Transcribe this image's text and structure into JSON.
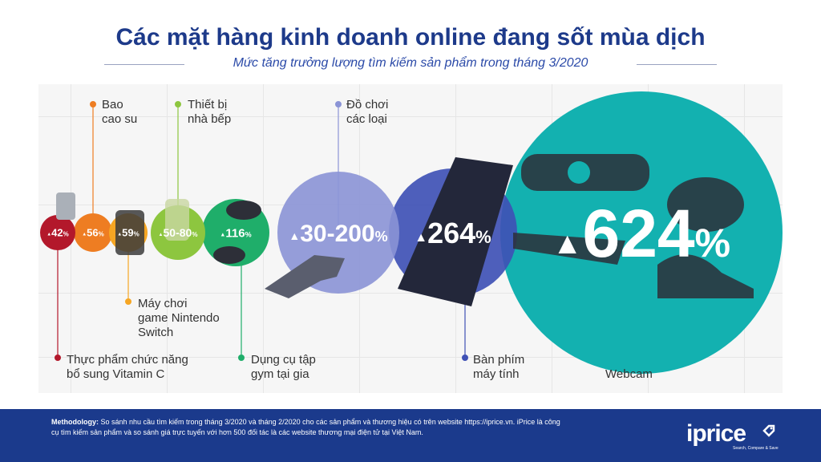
{
  "title": "Các mặt hàng kinh doanh online đang sốt mùa dịch",
  "subtitle": "Mức tăng trưởng lượng tìm kiếm sản phẩm trong tháng 3/2020",
  "colors": {
    "title": "#1d3a8a",
    "footer": "#1b3a8c",
    "vitamin": "#b3182b",
    "condom": "#ee7d22",
    "nintendo": "#f6a623",
    "kitchen": "#8dc63f",
    "gym": "#1fae6a",
    "toys": "#8b94d6",
    "keyboard": "#3f51b5",
    "webcam": "#13b1b0"
  },
  "chart_data": {
    "type": "bubble",
    "title": "Các mặt hàng kinh doanh online đang sốt mùa dịch",
    "subtitle": "Mức tăng trưởng lượng tìm kiếm sản phẩm trong tháng 3/2020",
    "unit": "%",
    "items": [
      {
        "category": "Thực phẩm chức năng bổ sung Vitamin C",
        "value": 42,
        "value_label": "42",
        "color": "#b3182b",
        "label_side": "bottom"
      },
      {
        "category": "Bao cao su",
        "value": 56,
        "value_label": "56",
        "color": "#ee7d22",
        "label_side": "top"
      },
      {
        "category": "Máy chơi game Nintendo Switch",
        "value": 59,
        "value_label": "59",
        "color": "#f6a623",
        "label_side": "bottom"
      },
      {
        "category": "Thiết bị nhà bếp",
        "value": 80,
        "value_range": [
          50,
          80
        ],
        "value_label": "50-80",
        "color": "#8dc63f",
        "label_side": "top"
      },
      {
        "category": "Dụng cụ tập gym tại gia",
        "value": 116,
        "value_label": "116",
        "color": "#1fae6a",
        "label_side": "bottom"
      },
      {
        "category": "Đồ chơi các loại",
        "value": 200,
        "value_range": [
          30,
          200
        ],
        "value_label": "30-200",
        "color": "#8b94d6",
        "label_side": "top"
      },
      {
        "category": "Bàn phím máy tính",
        "value": 264,
        "value_label": "264",
        "color": "#3f51b5",
        "label_side": "bottom"
      },
      {
        "category": "Webcam",
        "value": 624,
        "value_label": "624",
        "color": "#13b1b0",
        "label_side": "bottom"
      }
    ]
  },
  "labels": {
    "vitamin": [
      "Thực phẩm chức năng",
      "bổ sung Vitamin C"
    ],
    "condom": [
      "Bao",
      "cao su"
    ],
    "nintendo": [
      "Máy chơi",
      "game Nintendo",
      "Switch"
    ],
    "kitchen": [
      "Thiết bị",
      "nhà bếp"
    ],
    "gym": [
      "Dụng cụ tập",
      "gym tại gia"
    ],
    "toys": [
      "Đồ chơi",
      "các loại"
    ],
    "keyboard": [
      "Bàn phím",
      "máy tính"
    ],
    "webcam": [
      "Webcam"
    ]
  },
  "footer": {
    "methodology_label": "Methodology:",
    "methodology_text": " So sánh nhu cầu tìm kiếm trong tháng 3/2020 và tháng 2/2020 cho các sản phẩm và thương hiệu có trên website https://iprice.vn. iPrice là công cụ tìm kiếm sản phẩm và so sánh giá trực tuyến với hơn 500 đối tác là các website thương mại điện tử tại Việt Nam.",
    "logo": "iprice",
    "tagline": "Search, Compare & Save"
  }
}
